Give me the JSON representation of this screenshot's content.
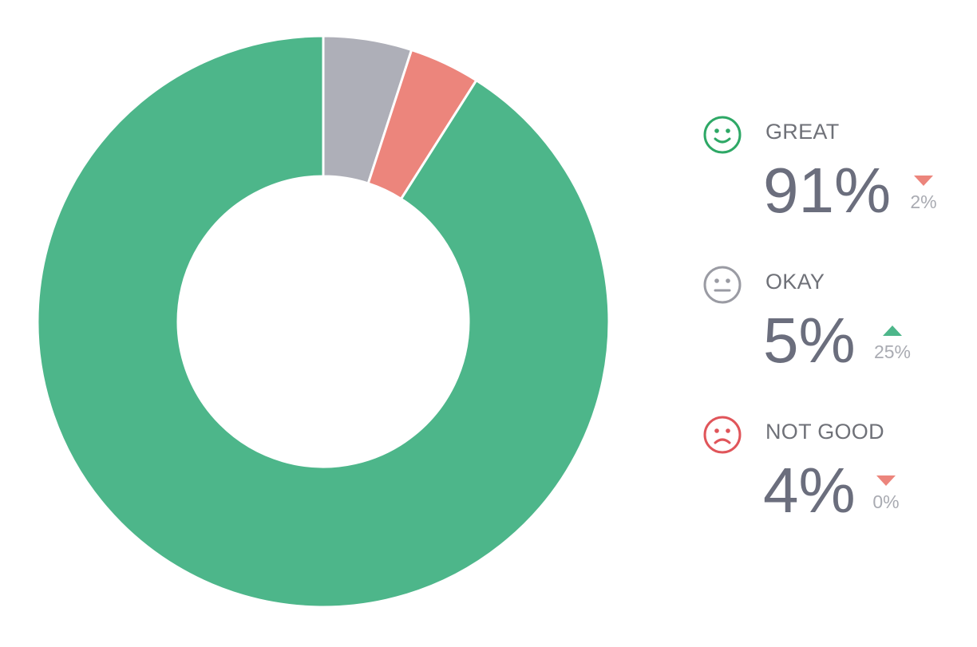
{
  "chart_data": {
    "type": "pie",
    "style": "donut",
    "categories": [
      "GREAT",
      "OKAY",
      "NOT GOOD"
    ],
    "values": [
      91,
      5,
      4
    ],
    "unit": "%",
    "colors": [
      "#4db68a",
      "#aeafb8",
      "#ec857c"
    ],
    "legend_placement": "right"
  },
  "legend": [
    {
      "label": "GREAT",
      "value": "91%",
      "icon": "smiley-happy-icon",
      "icon_color": "#2ea866",
      "delta": "2%",
      "delta_direction": "down",
      "delta_color": "#ec857c"
    },
    {
      "label": "OKAY",
      "value": "5%",
      "icon": "smiley-neutral-icon",
      "icon_color": "#9a9ba3",
      "delta": "25%",
      "delta_direction": "up",
      "delta_color": "#4db68a"
    },
    {
      "label": "NOT GOOD",
      "value": "4%",
      "icon": "smiley-sad-icon",
      "icon_color": "#e0555a",
      "delta": "0%",
      "delta_direction": "down",
      "delta_color": "#ec857c"
    }
  ]
}
